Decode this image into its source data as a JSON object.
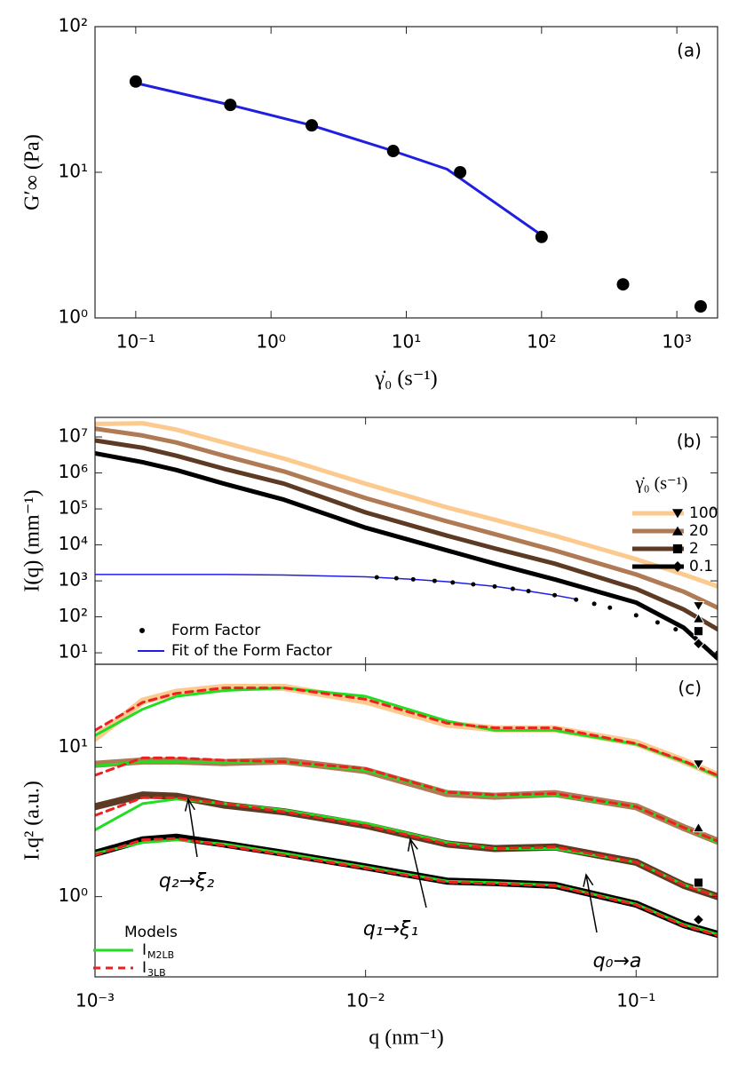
{
  "chart_data": [
    {
      "type": "scatter",
      "label": "(a)",
      "x_label": "γ̇₀ (s⁻¹)",
      "y_label": "G′∞ (Pa)",
      "xscale": "log",
      "yscale": "log",
      "xlim": [
        0.05,
        2000
      ],
      "ylim": [
        1,
        100
      ],
      "xticks": [
        {
          "value": 0.1,
          "label": "10⁻¹"
        },
        {
          "value": 1,
          "label": "10⁰"
        },
        {
          "value": 10,
          "label": "10¹"
        },
        {
          "value": 100,
          "label": "10²"
        },
        {
          "value": 1000,
          "label": "10³"
        }
      ],
      "yticks": [
        {
          "value": 1,
          "label": "10⁰"
        },
        {
          "value": 10,
          "label": "10¹"
        },
        {
          "value": 100,
          "label": "10²"
        }
      ],
      "points": {
        "color": "#000000",
        "x": [
          0.1,
          0.5,
          2,
          8,
          25,
          100,
          400,
          1500
        ],
        "y": [
          42,
          29,
          21,
          14,
          10,
          3.6,
          1.7,
          1.2
        ]
      },
      "fit": {
        "color": "#1f1fe0",
        "x": [
          0.1,
          0.5,
          2,
          8,
          20,
          100
        ],
        "y": [
          41,
          29,
          21,
          14,
          10.5,
          3.7
        ]
      }
    },
    {
      "type": "line",
      "label": "(b)",
      "y_label": "I(q) (mm⁻¹)",
      "xscale": "log",
      "yscale": "log",
      "xlim": [
        0.001,
        0.2
      ],
      "ylim": [
        4.8,
        35000000
      ],
      "xticks": [
        0.001,
        0.01,
        0.1
      ],
      "yticks": [
        {
          "value": 10,
          "label": "10¹"
        },
        {
          "value": 100,
          "label": "10²"
        },
        {
          "value": 1000,
          "label": "10³"
        },
        {
          "value": 10000,
          "label": "10⁴"
        },
        {
          "value": 100000,
          "label": "10⁵"
        },
        {
          "value": 1000000,
          "label": "10⁶"
        },
        {
          "value": 10000000,
          "label": "10⁷"
        }
      ],
      "x": [
        0.001,
        0.0015,
        0.002,
        0.003,
        0.005,
        0.01,
        0.02,
        0.03,
        0.05,
        0.1,
        0.15,
        0.2
      ],
      "legend_title": "γ̇₀ (s⁻¹)",
      "series": [
        {
          "name": "100",
          "color": "#fcca8f",
          "marker": "triangle-down",
          "marker_x": 0.17,
          "marker_y": 200,
          "values": [
            23000000,
            24000000,
            16000000,
            7000000,
            2500000,
            500000,
            110000,
            50000,
            18000,
            4000,
            1500,
            700
          ]
        },
        {
          "name": "20",
          "color": "#b07a55",
          "marker": "triangle-up",
          "marker_x": 0.17,
          "marker_y": 90,
          "values": [
            17000000,
            11000000,
            7000000,
            3000000,
            1100000,
            200000,
            45000,
            20000,
            7000,
            1500,
            500,
            180
          ]
        },
        {
          "name": "2",
          "color": "#5d3a23",
          "marker": "square",
          "marker_x": 0.17,
          "marker_y": 40,
          "values": [
            8000000,
            5000000,
            3000000,
            1300000,
            500000,
            80000,
            18000,
            8000,
            3000,
            600,
            160,
            45
          ]
        },
        {
          "name": "0.1",
          "color": "#000000",
          "marker": "diamond",
          "marker_x": 0.17,
          "marker_y": 18,
          "values": [
            3500000,
            2000000,
            1200000,
            500000,
            180000,
            30000,
            7000,
            3000,
            1100,
            250,
            50,
            7
          ]
        }
      ],
      "form_factor": {
        "name": "Form Factor",
        "color": "#000000",
        "x": [
          0.011,
          0.013,
          0.015,
          0.018,
          0.021,
          0.025,
          0.03,
          0.035,
          0.04,
          0.05,
          0.06,
          0.07,
          0.08,
          0.1,
          0.12,
          0.14,
          0.17,
          0.2
        ],
        "values": [
          1250,
          1180,
          1100,
          1000,
          900,
          800,
          700,
          600,
          520,
          400,
          300,
          230,
          180,
          110,
          70,
          45,
          22,
          10
        ]
      },
      "form_factor_fit": {
        "name": "Fit of the Form Factor",
        "color": "#1f1fe0",
        "x": [
          0.001,
          0.003,
          0.005,
          0.01,
          0.015,
          0.02,
          0.03,
          0.04,
          0.05,
          0.06
        ],
        "values": [
          1500,
          1500,
          1450,
          1300,
          1100,
          950,
          700,
          520,
          400,
          310
        ]
      }
    },
    {
      "type": "line",
      "label": "(c)",
      "x_label": "q (nm⁻¹)",
      "y_label": "I.q² (a.u.)",
      "xscale": "log",
      "yscale": "log",
      "xlim": [
        0.001,
        0.2
      ],
      "ylim": [
        0.29,
        36
      ],
      "xticks": [
        {
          "value": 0.001,
          "label": "10⁻³"
        },
        {
          "value": 0.01,
          "label": "10⁻²"
        },
        {
          "value": 0.1,
          "label": "10⁻¹"
        }
      ],
      "yticks": [
        {
          "value": 1,
          "label": "10⁰"
        },
        {
          "value": 10,
          "label": "10¹"
        }
      ],
      "x": [
        0.001,
        0.0015,
        0.002,
        0.003,
        0.005,
        0.01,
        0.02,
        0.03,
        0.05,
        0.1,
        0.15,
        0.2
      ],
      "series": [
        {
          "color": "#fcca8f",
          "marker": "triangle-down",
          "marker_x": 0.17,
          "marker_y": 7.7,
          "values": [
            11.5,
            20.4,
            23.4,
            25.2,
            25.2,
            20.4,
            14.3,
            13.3,
            13.3,
            10.7,
            8.1,
            6.5
          ]
        },
        {
          "color": "#b07a55",
          "marker": "triangle-up",
          "marker_x": 0.17,
          "marker_y": 2.9,
          "values": [
            7.7,
            8.1,
            8.1,
            7.9,
            8.1,
            7.0,
            4.9,
            4.7,
            4.9,
            4.0,
            2.9,
            2.35
          ]
        },
        {
          "color": "#5d3a23",
          "marker": "square",
          "marker_x": 0.17,
          "marker_y": 1.24,
          "values": [
            4.0,
            4.8,
            4.7,
            4.1,
            3.7,
            3.0,
            2.25,
            2.1,
            2.15,
            1.7,
            1.19,
            1.0
          ]
        },
        {
          "color": "#000000",
          "marker": "diamond",
          "marker_x": 0.17,
          "marker_y": 0.7,
          "values": [
            1.95,
            2.4,
            2.5,
            2.25,
            1.95,
            1.58,
            1.27,
            1.24,
            1.19,
            0.89,
            0.65,
            0.56
          ]
        }
      ],
      "models_title": "Models",
      "models": [
        {
          "name": "I",
          "subscript": "M2LB",
          "color": "#22dd22",
          "dash": false,
          "curves": [
            [
              12,
              18,
              22,
              24,
              25,
              22,
              15,
              13,
              13,
              10.5,
              8,
              6.4
            ],
            [
              7.5,
              8,
              8,
              7.9,
              8,
              7,
              5,
              4.7,
              4.8,
              4,
              2.9,
              2.3
            ],
            [
              2.8,
              4.2,
              4.5,
              4.2,
              3.8,
              3.1,
              2.3,
              2.1,
              2.1,
              1.7,
              1.2,
              1.0
            ],
            [
              1.95,
              2.3,
              2.4,
              2.25,
              1.95,
              1.58,
              1.27,
              1.24,
              1.19,
              0.89,
              0.65,
              0.56
            ]
          ]
        },
        {
          "name": "I",
          "subscript": "3LB",
          "color": "#ee2020",
          "dash": true,
          "curves": [
            [
              13,
              20,
              23,
              25,
              25,
              21,
              14.5,
              13.5,
              13.5,
              10.6,
              8.1,
              6.5
            ],
            [
              6.5,
              8.5,
              8.5,
              8.2,
              8,
              7.2,
              5,
              4.8,
              4.9,
              4,
              2.9,
              2.35
            ],
            [
              3.5,
              4.6,
              4.6,
              4.2,
              3.7,
              3,
              2.25,
              2.1,
              2.15,
              1.7,
              1.19,
              1.0
            ],
            [
              1.9,
              2.4,
              2.45,
              2.2,
              1.9,
              1.55,
              1.25,
              1.22,
              1.18,
              0.88,
              0.64,
              0.55
            ]
          ]
        }
      ],
      "annotations": [
        "q₂→ξ₂",
        "q₁→ξ₁",
        "q₀→a"
      ]
    }
  ]
}
